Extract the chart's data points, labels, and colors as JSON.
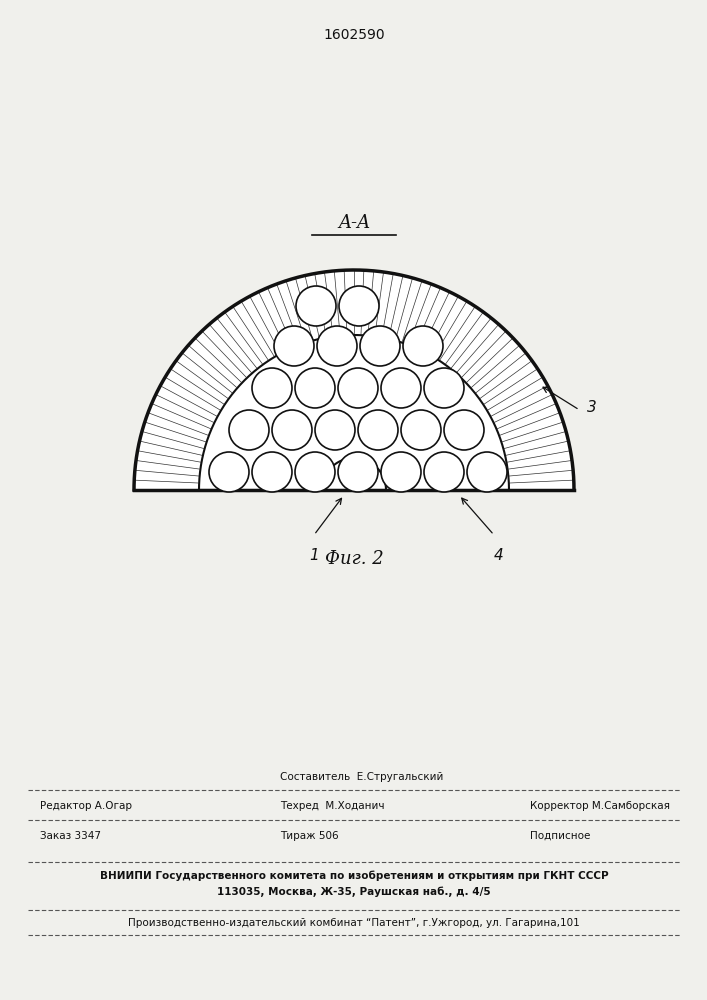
{
  "patent_number": "1602590",
  "section_label": "A-A",
  "fig_label": "Фиг. 2",
  "label_1": "1",
  "label_3": "3",
  "label_4": "4",
  "bg_color": "#f5f5f0",
  "line_color": "#111111",
  "bottom_text_1": "Составитель  Е.Стругальский",
  "bottom_text_2": "Редактор А.Огар",
  "bottom_text_3": "Техред  М.Ходанич",
  "bottom_text_4": "Корректор М.Самборская",
  "bottom_text_5": "Заказ 3347",
  "bottom_text_6": "Тираж 506",
  "bottom_text_7": "Подписное",
  "bottom_text_8": "ВНИИПИ Государственного комитета по изобретениям и открытиям при ГКНТ СССР",
  "bottom_text_9": "113035, Москва, Ж-35, Раушская наб., д. 4/5",
  "bottom_text_10": "Производственно-издательский комбинат “Патент”, г.Ужгород, ул. Гагарина,101"
}
